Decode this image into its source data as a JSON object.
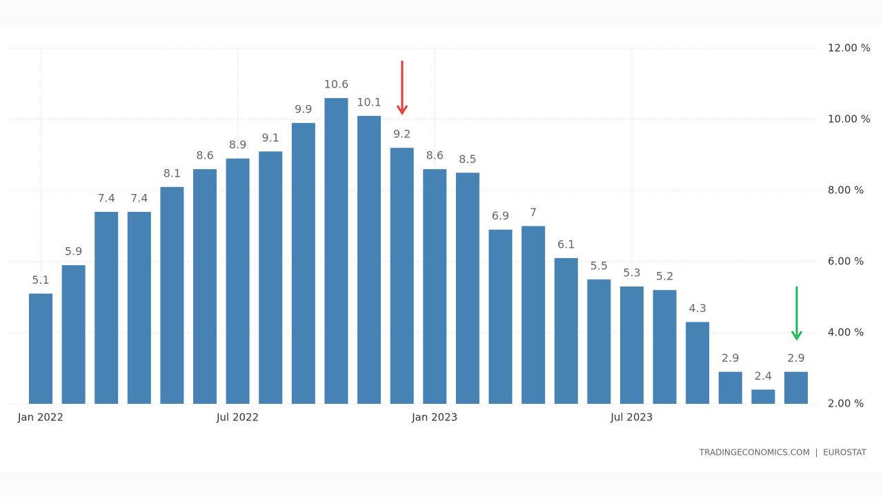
{
  "chart_data": {
    "type": "bar",
    "categories": [
      "Jan 2022",
      null,
      null,
      null,
      null,
      null,
      "Jul 2022",
      null,
      null,
      null,
      null,
      null,
      "Jan 2023",
      null,
      null,
      null,
      null,
      null,
      "Jul 2023",
      null,
      null,
      null,
      null,
      null
    ],
    "values": [
      5.1,
      5.9,
      7.4,
      7.4,
      8.1,
      8.6,
      8.9,
      9.1,
      9.9,
      10.6,
      10.1,
      9.2,
      8.6,
      8.5,
      6.9,
      7,
      6.1,
      5.5,
      5.3,
      5.2,
      4.3,
      2.9,
      2.4,
      2.9
    ],
    "color": "#4682b4",
    "ylim": [
      2,
      12
    ],
    "yticks": [
      {
        "value": 2,
        "label": "2.00 %"
      },
      {
        "value": 4,
        "label": "4.00 %"
      },
      {
        "value": 6,
        "label": "6.00 %"
      },
      {
        "value": 8,
        "label": "8.00 %"
      },
      {
        "value": 10,
        "label": "10.00 %"
      },
      {
        "value": 12,
        "label": "12.00 %"
      }
    ],
    "grid": true,
    "source": "TRADINGECONOMICS.COM  |  EUROSTAT"
  }
}
